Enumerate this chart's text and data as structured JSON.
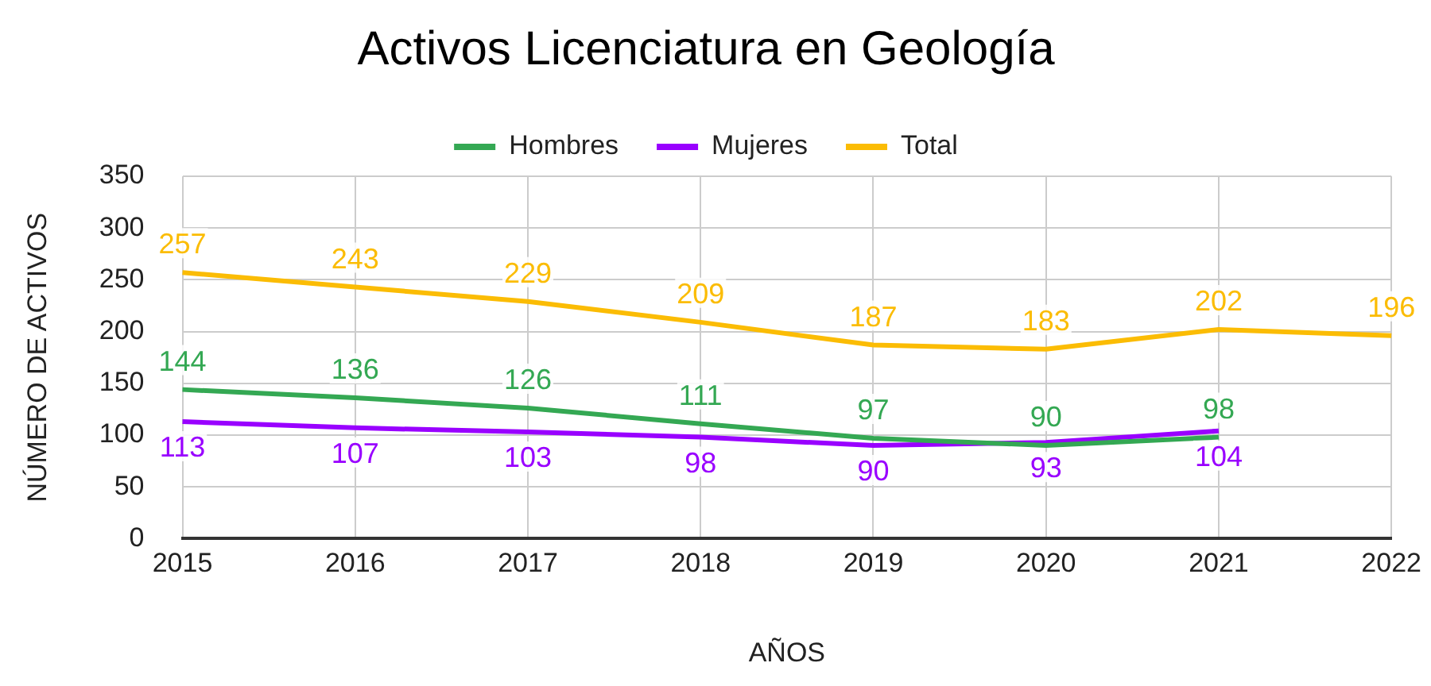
{
  "chart_data": {
    "type": "line",
    "title": "Activos Licenciatura en Geología",
    "xlabel": "AÑOS",
    "ylabel": "NÚMERO DE ACTIVOS",
    "categories": [
      "2015",
      "2016",
      "2017",
      "2018",
      "2019",
      "2020",
      "2021",
      "2022"
    ],
    "series": [
      {
        "name": "Hombres",
        "color": "#34a853",
        "values": [
          144,
          136,
          126,
          111,
          97,
          90,
          98,
          null
        ]
      },
      {
        "name": "Mujeres",
        "color": "#9900ff",
        "values": [
          113,
          107,
          103,
          98,
          90,
          93,
          104,
          null
        ]
      },
      {
        "name": "Total",
        "color": "#fbbc04",
        "values": [
          257,
          243,
          229,
          209,
          187,
          183,
          202,
          196
        ]
      }
    ],
    "ylim": [
      0,
      350
    ],
    "yticks": [
      0,
      50,
      100,
      150,
      200,
      250,
      300,
      350
    ],
    "grid": true,
    "legend": "top",
    "marker": "none",
    "line_style": "solid",
    "data_labels": true
  }
}
